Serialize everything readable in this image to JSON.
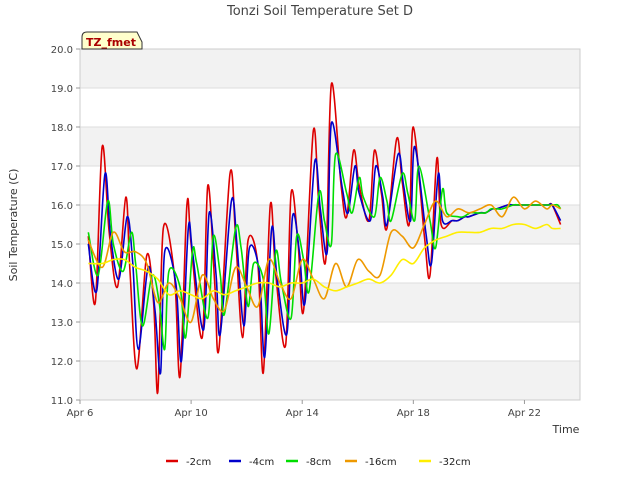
{
  "chart_data": {
    "type": "line",
    "title": "Tonzi Soil Temperature Set D",
    "xlabel": "Time",
    "ylabel": "Soil Temperature (C)",
    "xlim": [
      6,
      24
    ],
    "ylim": [
      11.0,
      20.0
    ],
    "x_unit": "day of April",
    "x_ticks": [
      {
        "value": 6,
        "label": "Apr 6"
      },
      {
        "value": 10,
        "label": "Apr 10"
      },
      {
        "value": 14,
        "label": "Apr 14"
      },
      {
        "value": 18,
        "label": "Apr 18"
      },
      {
        "value": 22,
        "label": "Apr 22"
      }
    ],
    "y_ticks": [
      "11.0",
      "12.0",
      "13.0",
      "14.0",
      "15.0",
      "16.0",
      "17.0",
      "18.0",
      "19.0",
      "20.0"
    ],
    "y_tick_values": [
      11,
      12,
      13,
      14,
      15,
      16,
      17,
      18,
      19,
      20
    ],
    "badge": "TZ_fmet",
    "grid": true,
    "legend_position": "bottom",
    "series": [
      {
        "name": "-2cm",
        "color": "#dd0000",
        "x": [
          6.3,
          6.55,
          6.8,
          7.05,
          7.35,
          7.65,
          7.8,
          8.05,
          8.4,
          8.65,
          8.8,
          9.0,
          9.4,
          9.6,
          9.85,
          10.0,
          10.4,
          10.6,
          10.85,
          11.0,
          11.4,
          11.6,
          11.85,
          12.05,
          12.4,
          12.6,
          12.85,
          13.05,
          13.4,
          13.6,
          13.85,
          14.05,
          14.4,
          14.6,
          14.85,
          15.05,
          15.4,
          15.6,
          15.85,
          16.05,
          16.4,
          16.6,
          16.85,
          17.05,
          17.4,
          17.6,
          17.85,
          18.0,
          18.4,
          18.6,
          18.85,
          19.0,
          19.4,
          19.6,
          19.85,
          20.0,
          20.4,
          20.6,
          20.85,
          21.0,
          21.4,
          21.6,
          21.85,
          22.0,
          22.4,
          22.6,
          22.85,
          23.0,
          23.3
        ],
        "y": [
          15.2,
          13.5,
          17.5,
          15.3,
          13.9,
          16.2,
          14.3,
          11.8,
          14.7,
          13.5,
          11.2,
          15.4,
          14.2,
          11.6,
          16.0,
          15.0,
          12.6,
          16.5,
          14.0,
          12.3,
          16.8,
          15.2,
          12.6,
          15.1,
          14.5,
          11.7,
          16.0,
          14.2,
          12.4,
          16.3,
          15.0,
          13.3,
          17.9,
          16.0,
          14.6,
          19.1,
          16.5,
          15.7,
          17.4,
          16.5,
          15.6,
          17.4,
          16.3,
          15.4,
          17.7,
          16.6,
          15.5,
          18.0,
          15.2,
          14.2,
          17.2,
          15.5,
          15.6,
          15.6,
          15.7,
          15.7,
          15.8,
          15.8,
          15.9,
          15.9,
          16.0,
          16.0,
          16.0,
          16.0,
          16.0,
          16.0,
          16.0,
          16.0,
          15.5
        ]
      },
      {
        "name": "-4cm",
        "color": "#0000cc",
        "x": [
          6.3,
          6.6,
          6.9,
          7.1,
          7.4,
          7.7,
          7.9,
          8.1,
          8.45,
          8.7,
          8.9,
          9.05,
          9.45,
          9.65,
          9.9,
          10.05,
          10.45,
          10.65,
          10.9,
          11.05,
          11.45,
          11.65,
          11.9,
          12.1,
          12.45,
          12.65,
          12.9,
          13.1,
          13.45,
          13.65,
          13.9,
          14.1,
          14.45,
          14.65,
          14.9,
          15.05,
          15.45,
          15.65,
          15.9,
          16.05,
          16.45,
          16.65,
          16.9,
          17.05,
          17.45,
          17.65,
          17.9,
          18.05,
          18.45,
          18.65,
          18.9,
          19.05,
          19.4,
          19.6,
          19.85,
          20.0,
          20.4,
          20.6,
          20.85,
          21.0,
          21.4,
          21.6,
          21.85,
          22.0,
          22.4,
          22.6,
          22.85,
          23.0,
          23.3
        ],
        "y": [
          15.0,
          13.8,
          16.8,
          15.2,
          14.1,
          15.7,
          14.5,
          12.3,
          14.4,
          13.3,
          11.7,
          14.8,
          14.0,
          12.0,
          15.4,
          14.8,
          12.8,
          15.8,
          14.2,
          12.7,
          16.1,
          15.0,
          12.9,
          14.9,
          14.3,
          12.1,
          15.4,
          14.1,
          12.7,
          15.7,
          14.8,
          13.5,
          17.1,
          15.9,
          14.8,
          18.1,
          16.4,
          15.8,
          17.0,
          16.3,
          15.6,
          17.0,
          16.2,
          15.5,
          17.3,
          16.5,
          15.6,
          17.5,
          15.3,
          14.5,
          16.8,
          15.6,
          15.6,
          15.6,
          15.7,
          15.7,
          15.8,
          15.8,
          15.9,
          15.9,
          16.0,
          16.0,
          16.0,
          16.0,
          16.0,
          16.0,
          16.0,
          16.0,
          15.6
        ]
      },
      {
        "name": "-8cm",
        "color": "#00dd00",
        "x": [
          6.3,
          6.65,
          7.0,
          7.2,
          7.55,
          7.85,
          8.0,
          8.25,
          8.6,
          8.85,
          9.05,
          9.2,
          9.6,
          9.8,
          10.05,
          10.2,
          10.6,
          10.8,
          11.05,
          11.2,
          11.6,
          11.8,
          12.05,
          12.25,
          12.6,
          12.8,
          13.05,
          13.25,
          13.6,
          13.8,
          14.05,
          14.25,
          14.6,
          14.8,
          15.05,
          15.2,
          15.6,
          15.8,
          16.05,
          16.2,
          16.6,
          16.8,
          17.05,
          17.2,
          17.6,
          17.8,
          18.05,
          18.2,
          18.6,
          18.8,
          19.05,
          19.2,
          19.6,
          19.8,
          20.05,
          20.2,
          20.6,
          20.8,
          21.05,
          21.2,
          21.6,
          21.8,
          22.05,
          22.2,
          22.6,
          22.8,
          23.05,
          23.2,
          23.3
        ],
        "y": [
          15.3,
          14.2,
          16.1,
          15.0,
          14.3,
          15.3,
          14.5,
          12.9,
          14.2,
          13.5,
          12.3,
          14.3,
          13.9,
          12.6,
          14.8,
          14.5,
          13.1,
          15.2,
          14.2,
          13.2,
          15.4,
          14.9,
          13.4,
          14.5,
          14.1,
          12.7,
          14.8,
          14.0,
          13.1,
          15.2,
          14.6,
          13.8,
          16.3,
          15.6,
          15.0,
          17.3,
          16.3,
          15.8,
          16.7,
          16.2,
          15.7,
          16.7,
          16.1,
          15.6,
          16.8,
          16.3,
          15.6,
          17.0,
          15.6,
          14.9,
          16.4,
          15.8,
          15.7,
          15.7,
          15.8,
          15.8,
          15.8,
          15.9,
          15.9,
          15.9,
          16.0,
          16.0,
          16.0,
          16.0,
          16.0,
          16.0,
          16.0,
          16.0,
          15.9
        ]
      },
      {
        "name": "-16cm",
        "color": "#ee9900",
        "x": [
          6.3,
          6.8,
          7.2,
          7.6,
          8.0,
          8.4,
          8.8,
          9.2,
          9.6,
          10.0,
          10.4,
          10.8,
          11.2,
          11.6,
          12.0,
          12.4,
          12.8,
          13.2,
          13.6,
          14.0,
          14.4,
          14.8,
          15.2,
          15.6,
          16.0,
          16.4,
          16.8,
          17.2,
          17.6,
          18.0,
          18.4,
          18.8,
          19.2,
          19.6,
          20.0,
          20.4,
          20.8,
          21.2,
          21.6,
          22.0,
          22.4,
          22.8,
          23.0,
          23.3
        ],
        "y": [
          15.1,
          14.4,
          15.3,
          14.8,
          14.8,
          14.5,
          13.5,
          14.0,
          13.6,
          13.0,
          14.2,
          13.6,
          13.3,
          14.4,
          13.9,
          13.4,
          14.6,
          14.0,
          13.6,
          14.6,
          14.1,
          13.6,
          14.5,
          13.9,
          14.6,
          14.3,
          14.2,
          15.3,
          15.2,
          14.9,
          15.5,
          16.1,
          15.7,
          15.9,
          15.8,
          15.9,
          16.0,
          15.7,
          16.2,
          15.9,
          16.1,
          15.9,
          16.0,
          15.9
        ]
      },
      {
        "name": "-32cm",
        "color": "#ffee00",
        "x": [
          6.3,
          6.8,
          7.2,
          7.6,
          8.0,
          8.4,
          8.8,
          9.2,
          9.6,
          10.0,
          10.4,
          10.8,
          11.2,
          11.6,
          12.0,
          12.4,
          12.8,
          13.2,
          13.6,
          14.0,
          14.4,
          14.8,
          15.2,
          15.6,
          16.0,
          16.4,
          16.8,
          17.2,
          17.6,
          18.0,
          18.4,
          18.8,
          19.2,
          19.6,
          20.0,
          20.4,
          20.8,
          21.2,
          21.6,
          22.0,
          22.4,
          22.8,
          23.0,
          23.3
        ],
        "y": [
          14.5,
          14.5,
          14.6,
          14.6,
          14.4,
          14.3,
          14.1,
          13.7,
          13.8,
          13.7,
          13.6,
          13.8,
          13.7,
          13.8,
          13.9,
          14.0,
          14.0,
          13.9,
          14.0,
          14.0,
          14.1,
          13.9,
          13.8,
          13.9,
          14.0,
          14.1,
          14.0,
          14.2,
          14.6,
          14.5,
          14.9,
          15.1,
          15.2,
          15.3,
          15.3,
          15.3,
          15.4,
          15.4,
          15.5,
          15.5,
          15.4,
          15.5,
          15.4,
          15.4
        ]
      }
    ]
  }
}
